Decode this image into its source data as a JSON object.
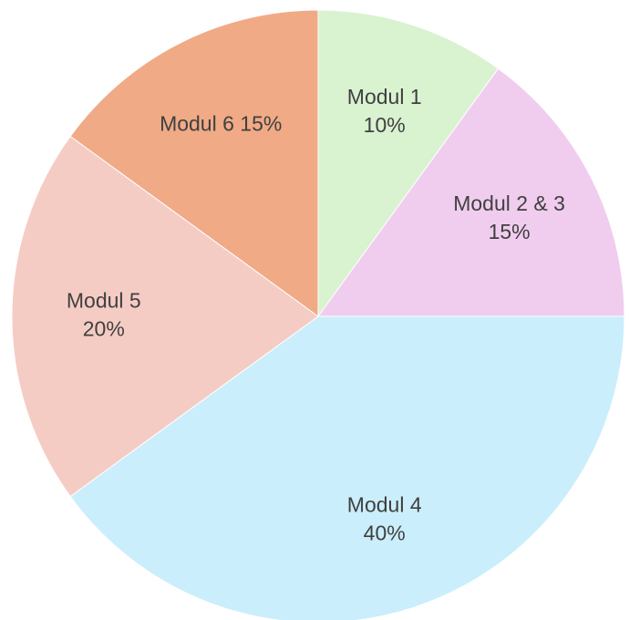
{
  "chart_data": {
    "type": "pie",
    "title": "",
    "start_angle_deg": 0,
    "direction": "clockwise",
    "slices": [
      {
        "name": "Modul 1",
        "value": 10,
        "label_lines": [
          "Modul 1",
          "10%"
        ],
        "color": "#d9f2d0"
      },
      {
        "name": "Modul 2 & 3",
        "value": 15,
        "label_lines": [
          "Modul 2 & 3",
          "15%"
        ],
        "color": "#f0cdee"
      },
      {
        "name": "Modul 4",
        "value": 40,
        "label_lines": [
          "Modul 4",
          "40%"
        ],
        "color": "#caeefb"
      },
      {
        "name": "Modul 5",
        "value": 20,
        "label_lines": [
          "Modul 5",
          "20%"
        ],
        "color": "#f5ccc4"
      },
      {
        "name": "Modul 6",
        "value": 15,
        "label_lines": [
          "Modul 6 15%"
        ],
        "color": "#f0aa86"
      }
    ]
  }
}
